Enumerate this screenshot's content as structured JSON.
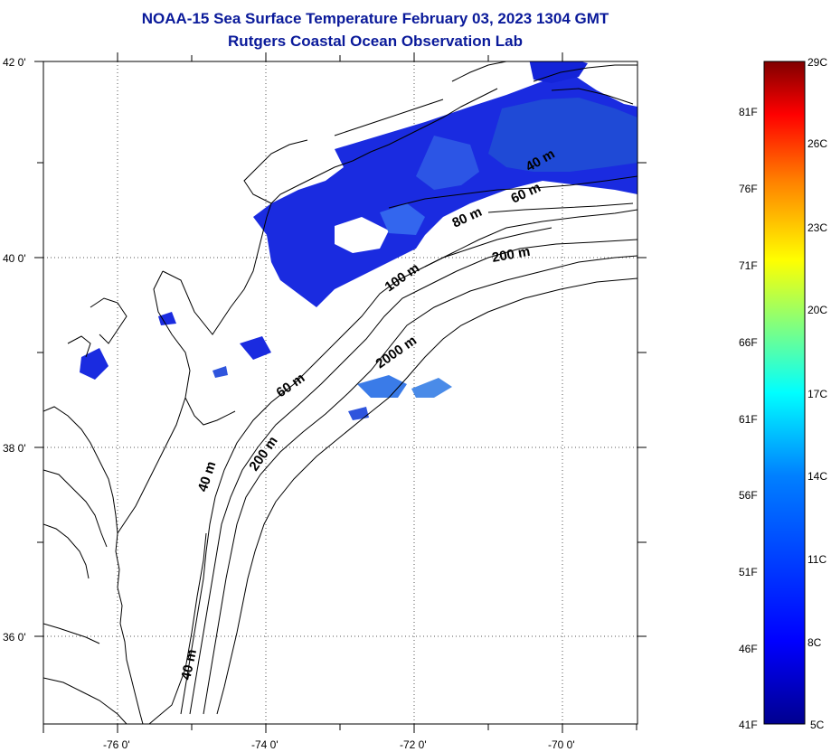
{
  "title": "NOAA-15 Sea Surface Temperature February 03, 2023 1304 GMT",
  "subtitle": "Rutgers Coastal Ocean Observation Lab",
  "map": {
    "lon_labels": [
      "-76 0'",
      "-74 0'",
      "-72 0'",
      "-70 0'"
    ],
    "lat_labels": [
      "42 0'",
      "40 0'",
      "38 0'",
      "36 0'"
    ],
    "contour_labels": [
      "40 m",
      "60 m",
      "80 m",
      "100 m",
      "200 m",
      "2000 m",
      "60 m",
      "40 m",
      "200 m",
      "40 m"
    ]
  },
  "colorbar": {
    "fahrenheit_labels": [
      "81F",
      "76F",
      "71F",
      "66F",
      "61F",
      "56F",
      "51F",
      "46F",
      "41F"
    ],
    "celsius_labels": [
      "29C",
      "26C",
      "23C",
      "20C",
      "17C",
      "14C",
      "11C",
      "8C",
      "5C"
    ],
    "colors": [
      "#00008f",
      "#0000ff",
      "#0080ff",
      "#00ffff",
      "#80ff80",
      "#ffff00",
      "#ff8000",
      "#ff0000",
      "#800000"
    ]
  }
}
